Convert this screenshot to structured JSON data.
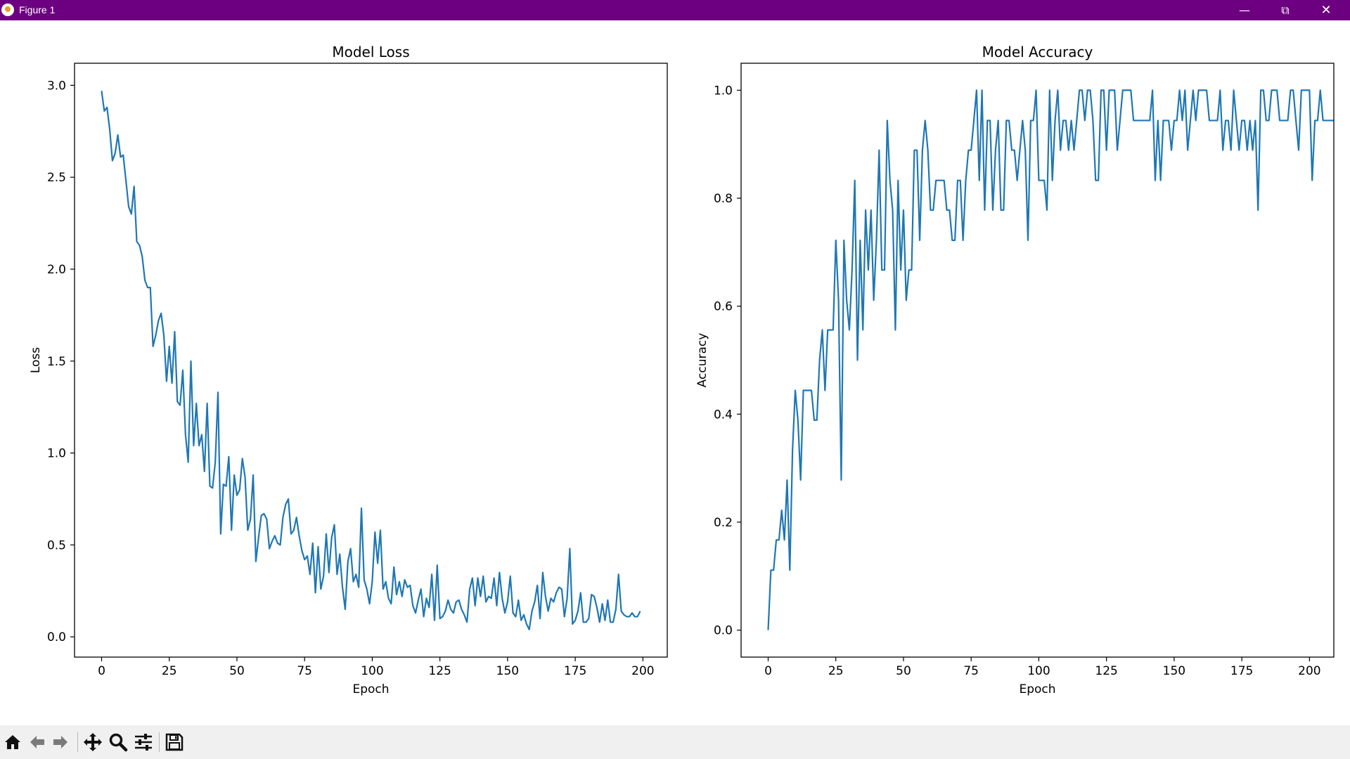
{
  "window": {
    "title": "Figure 1",
    "titlebar_color": "#6c0080"
  },
  "toolbar": {
    "buttons": [
      "home-icon",
      "back-icon",
      "forward-icon",
      "pan-icon",
      "zoom-icon",
      "configure-subplots-icon",
      "save-icon"
    ]
  },
  "chart_data": [
    {
      "type": "line",
      "title": "Model Loss",
      "xlabel": "Epoch",
      "ylabel": "Loss",
      "xlim": [
        -10,
        209
      ],
      "ylim": [
        -0.11,
        3.12
      ],
      "xticks": [
        0,
        25,
        50,
        75,
        100,
        125,
        150,
        175,
        200
      ],
      "yticks": [
        0.0,
        0.5,
        1.0,
        1.5,
        2.0,
        2.5,
        3.0
      ],
      "ytick_labels": [
        "0.0",
        "0.5",
        "1.0",
        "1.5",
        "2.0",
        "2.5",
        "3.0"
      ],
      "grid": false,
      "color": "#1f77b4",
      "series": [
        {
          "values": [
            2.97,
            2.86,
            2.88,
            2.76,
            2.59,
            2.63,
            2.73,
            2.61,
            2.62,
            2.48,
            2.34,
            2.3,
            2.45,
            2.15,
            2.13,
            2.07,
            1.94,
            1.9,
            1.9,
            1.58,
            1.64,
            1.72,
            1.76,
            1.64,
            1.39,
            1.58,
            1.38,
            1.66,
            1.28,
            1.26,
            1.45,
            1.1,
            0.95,
            1.5,
            1.04,
            1.27,
            1.04,
            1.1,
            0.9,
            1.27,
            0.82,
            0.81,
            0.95,
            1.33,
            0.56,
            0.83,
            0.82,
            0.98,
            0.58,
            0.88,
            0.77,
            0.8,
            0.97,
            0.87,
            0.58,
            0.64,
            0.88,
            0.41,
            0.54,
            0.66,
            0.67,
            0.64,
            0.48,
            0.52,
            0.55,
            0.51,
            0.5,
            0.65,
            0.72,
            0.75,
            0.56,
            0.58,
            0.65,
            0.55,
            0.47,
            0.42,
            0.44,
            0.34,
            0.51,
            0.24,
            0.49,
            0.26,
            0.33,
            0.56,
            0.35,
            0.54,
            0.61,
            0.34,
            0.45,
            0.27,
            0.15,
            0.41,
            0.48,
            0.3,
            0.34,
            0.27,
            0.7,
            0.31,
            0.26,
            0.18,
            0.3,
            0.57,
            0.4,
            0.58,
            0.26,
            0.3,
            0.21,
            0.18,
            0.38,
            0.23,
            0.3,
            0.22,
            0.31,
            0.27,
            0.28,
            0.17,
            0.13,
            0.2,
            0.26,
            0.11,
            0.21,
            0.16,
            0.34,
            0.09,
            0.39,
            0.1,
            0.11,
            0.14,
            0.2,
            0.15,
            0.13,
            0.19,
            0.2,
            0.15,
            0.12,
            0.08,
            0.26,
            0.32,
            0.17,
            0.32,
            0.22,
            0.33,
            0.19,
            0.22,
            0.21,
            0.32,
            0.17,
            0.35,
            0.21,
            0.13,
            0.19,
            0.33,
            0.13,
            0.11,
            0.2,
            0.09,
            0.12,
            0.07,
            0.04,
            0.14,
            0.19,
            0.28,
            0.1,
            0.35,
            0.22,
            0.14,
            0.21,
            0.19,
            0.24,
            0.27,
            0.26,
            0.11,
            0.21,
            0.48,
            0.07,
            0.09,
            0.14,
            0.24,
            0.08,
            0.08,
            0.1,
            0.23,
            0.22,
            0.16,
            0.08,
            0.18,
            0.09,
            0.2,
            0.08,
            0.08,
            0.15,
            0.34,
            0.14,
            0.12,
            0.11,
            0.11,
            0.13,
            0.11,
            0.11,
            0.14
          ]
        }
      ]
    },
    {
      "type": "line",
      "title": "Model Accuracy",
      "xlabel": "Epoch",
      "ylabel": "Accuracy",
      "xlim": [
        -10,
        209
      ],
      "ylim": [
        -0.05,
        1.05
      ],
      "xticks": [
        0,
        25,
        50,
        75,
        100,
        125,
        150,
        175,
        200
      ],
      "yticks": [
        0.0,
        0.2,
        0.4,
        0.6,
        0.8,
        1.0
      ],
      "ytick_labels": [
        "0.0",
        "0.2",
        "0.4",
        "0.6",
        "0.8",
        "1.0"
      ],
      "grid": false,
      "color": "#1f77b4",
      "series": [
        {
          "values": [
            0.0,
            0.111,
            0.111,
            0.167,
            0.167,
            0.222,
            0.167,
            0.278,
            0.111,
            0.333,
            0.444,
            0.389,
            0.278,
            0.444,
            0.444,
            0.444,
            0.444,
            0.389,
            0.389,
            0.5,
            0.556,
            0.444,
            0.556,
            0.556,
            0.556,
            0.722,
            0.611,
            0.278,
            0.722,
            0.611,
            0.556,
            0.667,
            0.833,
            0.5,
            0.722,
            0.556,
            0.778,
            0.667,
            0.778,
            0.611,
            0.722,
            0.889,
            0.667,
            0.667,
            0.944,
            0.833,
            0.778,
            0.556,
            0.833,
            0.667,
            0.778,
            0.611,
            0.667,
            0.667,
            0.889,
            0.889,
            0.722,
            0.889,
            0.944,
            0.889,
            0.778,
            0.778,
            0.833,
            0.833,
            0.833,
            0.833,
            0.778,
            0.778,
            0.722,
            0.722,
            0.833,
            0.833,
            0.722,
            0.833,
            0.889,
            0.889,
            0.944,
            1.0,
            0.833,
            1.0,
            0.778,
            0.944,
            0.944,
            0.778,
            0.889,
            0.944,
            0.778,
            0.778,
            0.944,
            0.944,
            0.889,
            0.889,
            0.833,
            0.889,
            0.944,
            0.889,
            0.722,
            0.944,
            0.944,
            1.0,
            0.833,
            0.833,
            0.833,
            0.778,
            1.0,
            0.833,
            0.944,
            1.0,
            0.889,
            0.944,
            0.944,
            0.889,
            0.944,
            0.889,
            0.944,
            1.0,
            1.0,
            0.944,
            1.0,
            1.0,
            0.944,
            0.833,
            0.833,
            1.0,
            1.0,
            0.889,
            1.0,
            1.0,
            1.0,
            0.889,
            0.944,
            1.0,
            1.0,
            1.0,
            1.0,
            0.944,
            0.944,
            0.944,
            0.944,
            0.944,
            0.944,
            0.944,
            1.0,
            0.833,
            0.944,
            0.833,
            0.944,
            0.944,
            0.944,
            0.889,
            0.944,
            0.944,
            1.0,
            0.944,
            1.0,
            0.889,
            0.944,
            1.0,
            0.944,
            1.0,
            1.0,
            1.0,
            1.0,
            0.944,
            0.944,
            0.944,
            0.944,
            1.0,
            0.889,
            0.944,
            0.944,
            0.889,
            1.0,
            0.944,
            0.889,
            0.944,
            0.944,
            0.889,
            0.944,
            0.889,
            0.944,
            0.778,
            1.0,
            1.0,
            0.944,
            0.944,
            1.0,
            1.0,
            1.0,
            0.944,
            0.944,
            0.944,
            0.944,
            1.0,
            1.0,
            0.944,
            0.889,
            1.0,
            1.0,
            1.0,
            1.0,
            0.833,
            0.944,
            0.944,
            1.0,
            0.944,
            0.944,
            0.944,
            0.944,
            0.944
          ]
        }
      ]
    }
  ]
}
